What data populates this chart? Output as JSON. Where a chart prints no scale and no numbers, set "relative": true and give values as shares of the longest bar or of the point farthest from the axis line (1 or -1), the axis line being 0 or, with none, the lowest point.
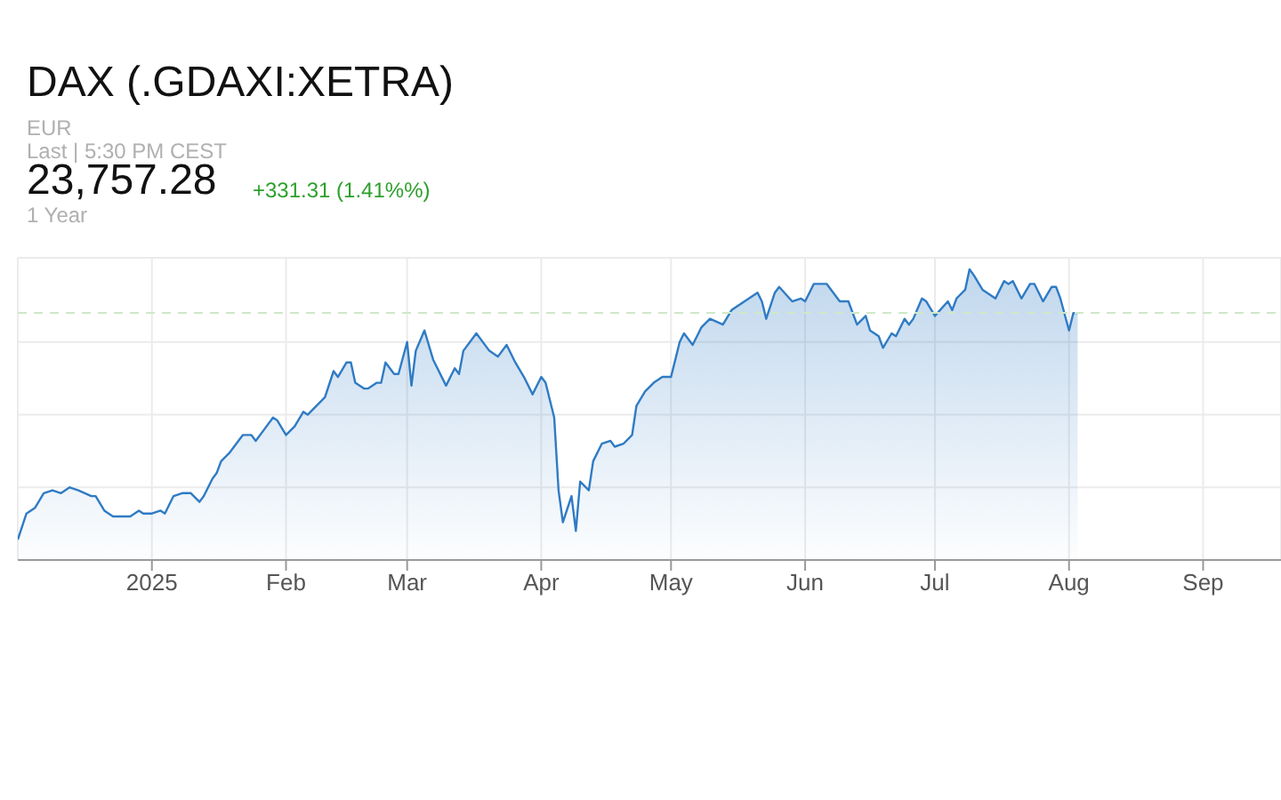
{
  "chart_data": {
    "type": "area",
    "title": "DAX (.GDAXI:XETRA)",
    "annotations": [
      "EUR",
      "Last | 5:30 PM CEST",
      "23,757.28",
      "+331.31 (1.41%%)",
      "1 Year"
    ],
    "relative": true,
    "grid": true,
    "xlim": [
      "2024-12-01",
      "2025-09-19"
    ],
    "xticks": [
      {
        "value": "2025-01-01",
        "label": "2025"
      },
      {
        "value": "2025-02-01",
        "label": "Feb"
      },
      {
        "value": "2025-03-01",
        "label": "Mar"
      },
      {
        "value": "2025-04-01",
        "label": "Apr"
      },
      {
        "value": "2025-05-01",
        "label": "May"
      },
      {
        "value": "2025-06-01",
        "label": "Jun"
      },
      {
        "value": "2025-07-01",
        "label": "Jul"
      },
      {
        "value": "2025-08-01",
        "label": "Aug"
      },
      {
        "value": "2025-09-01",
        "label": "Sep"
      }
    ],
    "ref_lines": [
      {
        "axis": "y",
        "value": 0.85,
        "label": null,
        "color": "#cfe8c8",
        "line_style": "dashed"
      }
    ],
    "x": [
      "2024-12-01",
      "2024-12-03",
      "2024-12-05",
      "2024-12-07",
      "2024-12-09",
      "2024-12-11",
      "2024-12-13",
      "2024-12-15",
      "2024-12-18",
      "2024-12-19",
      "2024-12-21",
      "2024-12-23",
      "2024-12-27",
      "2024-12-29",
      "2024-12-30",
      "2025-01-01",
      "2025-01-03",
      "2025-01-04",
      "2025-01-06",
      "2025-01-08",
      "2025-01-10",
      "2025-01-12",
      "2025-01-13",
      "2025-01-15",
      "2025-01-16",
      "2025-01-17",
      "2025-01-19",
      "2025-01-22",
      "2025-01-24",
      "2025-01-25",
      "2025-01-27",
      "2025-01-29",
      "2025-01-30",
      "2025-02-01",
      "2025-02-03",
      "2025-02-05",
      "2025-02-06",
      "2025-02-10",
      "2025-02-12",
      "2025-02-13",
      "2025-02-15",
      "2025-02-16",
      "2025-02-17",
      "2025-02-19",
      "2025-02-20",
      "2025-02-22",
      "2025-02-23",
      "2025-02-24",
      "2025-02-26",
      "2025-02-27",
      "2025-03-01",
      "2025-03-02",
      "2025-03-03",
      "2025-03-05",
      "2025-03-07",
      "2025-03-10",
      "2025-03-12",
      "2025-03-13",
      "2025-03-14",
      "2025-03-17",
      "2025-03-20",
      "2025-03-22",
      "2025-03-24",
      "2025-03-26",
      "2025-03-28",
      "2025-03-30",
      "2025-04-01",
      "2025-04-02",
      "2025-04-04",
      "2025-04-05",
      "2025-04-06",
      "2025-04-08",
      "2025-04-09",
      "2025-04-10",
      "2025-04-12",
      "2025-04-13",
      "2025-04-15",
      "2025-04-17",
      "2025-04-18",
      "2025-04-20",
      "2025-04-22",
      "2025-04-23",
      "2025-04-25",
      "2025-04-27",
      "2025-04-29",
      "2025-05-01",
      "2025-05-03",
      "2025-05-04",
      "2025-05-06",
      "2025-05-08",
      "2025-05-10",
      "2025-05-13",
      "2025-05-15",
      "2025-05-18",
      "2025-05-21",
      "2025-05-22",
      "2025-05-23",
      "2025-05-25",
      "2025-05-26",
      "2025-05-29",
      "2025-05-31",
      "2025-06-01",
      "2025-06-03",
      "2025-06-06",
      "2025-06-09",
      "2025-06-11",
      "2025-06-13",
      "2025-06-15",
      "2025-06-16",
      "2025-06-18",
      "2025-06-19",
      "2025-06-21",
      "2025-06-22",
      "2025-06-24",
      "2025-06-25",
      "2025-06-26",
      "2025-06-28",
      "2025-06-29",
      "2025-07-01",
      "2025-07-04",
      "2025-07-05",
      "2025-07-06",
      "2025-07-08",
      "2025-07-09",
      "2025-07-10",
      "2025-07-12",
      "2025-07-15",
      "2025-07-17",
      "2025-07-18",
      "2025-07-19",
      "2025-07-21",
      "2025-07-23",
      "2025-07-24",
      "2025-07-26",
      "2025-07-28",
      "2025-07-29",
      "2025-07-30",
      "2025-08-01",
      "2025-08-02",
      "2025-08-03"
    ],
    "series": [
      {
        "color": "#2f7bc4",
        "values": [
          0.07,
          0.16,
          0.18,
          0.23,
          0.24,
          0.23,
          0.25,
          0.24,
          0.22,
          0.22,
          0.17,
          0.15,
          0.15,
          0.17,
          0.16,
          0.16,
          0.17,
          0.16,
          0.22,
          0.23,
          0.23,
          0.2,
          0.22,
          0.28,
          0.3,
          0.34,
          0.37,
          0.43,
          0.43,
          0.41,
          0.45,
          0.49,
          0.48,
          0.43,
          0.46,
          0.51,
          0.5,
          0.56,
          0.65,
          0.63,
          0.68,
          0.68,
          0.61,
          0.59,
          0.59,
          0.61,
          0.61,
          0.68,
          0.64,
          0.64,
          0.75,
          0.6,
          0.72,
          0.79,
          0.69,
          0.6,
          0.66,
          0.64,
          0.72,
          0.78,
          0.72,
          0.7,
          0.74,
          0.68,
          0.63,
          0.57,
          0.63,
          0.61,
          0.49,
          0.24,
          0.13,
          0.22,
          0.1,
          0.27,
          0.24,
          0.34,
          0.4,
          0.41,
          0.39,
          0.4,
          0.43,
          0.53,
          0.58,
          0.61,
          0.63,
          0.63,
          0.75,
          0.78,
          0.74,
          0.8,
          0.83,
          0.81,
          0.86,
          0.89,
          0.92,
          0.89,
          0.83,
          0.92,
          0.94,
          0.89,
          0.9,
          0.89,
          0.95,
          0.95,
          0.89,
          0.89,
          0.81,
          0.84,
          0.79,
          0.77,
          0.73,
          0.78,
          0.77,
          0.83,
          0.81,
          0.83,
          0.9,
          0.89,
          0.84,
          0.89,
          0.86,
          0.9,
          0.93,
          1.0,
          0.98,
          0.93,
          0.9,
          0.96,
          0.95,
          0.96,
          0.9,
          0.95,
          0.95,
          0.89,
          0.94,
          0.94,
          0.9,
          0.79,
          0.85,
          0.85
        ]
      }
    ]
  }
}
